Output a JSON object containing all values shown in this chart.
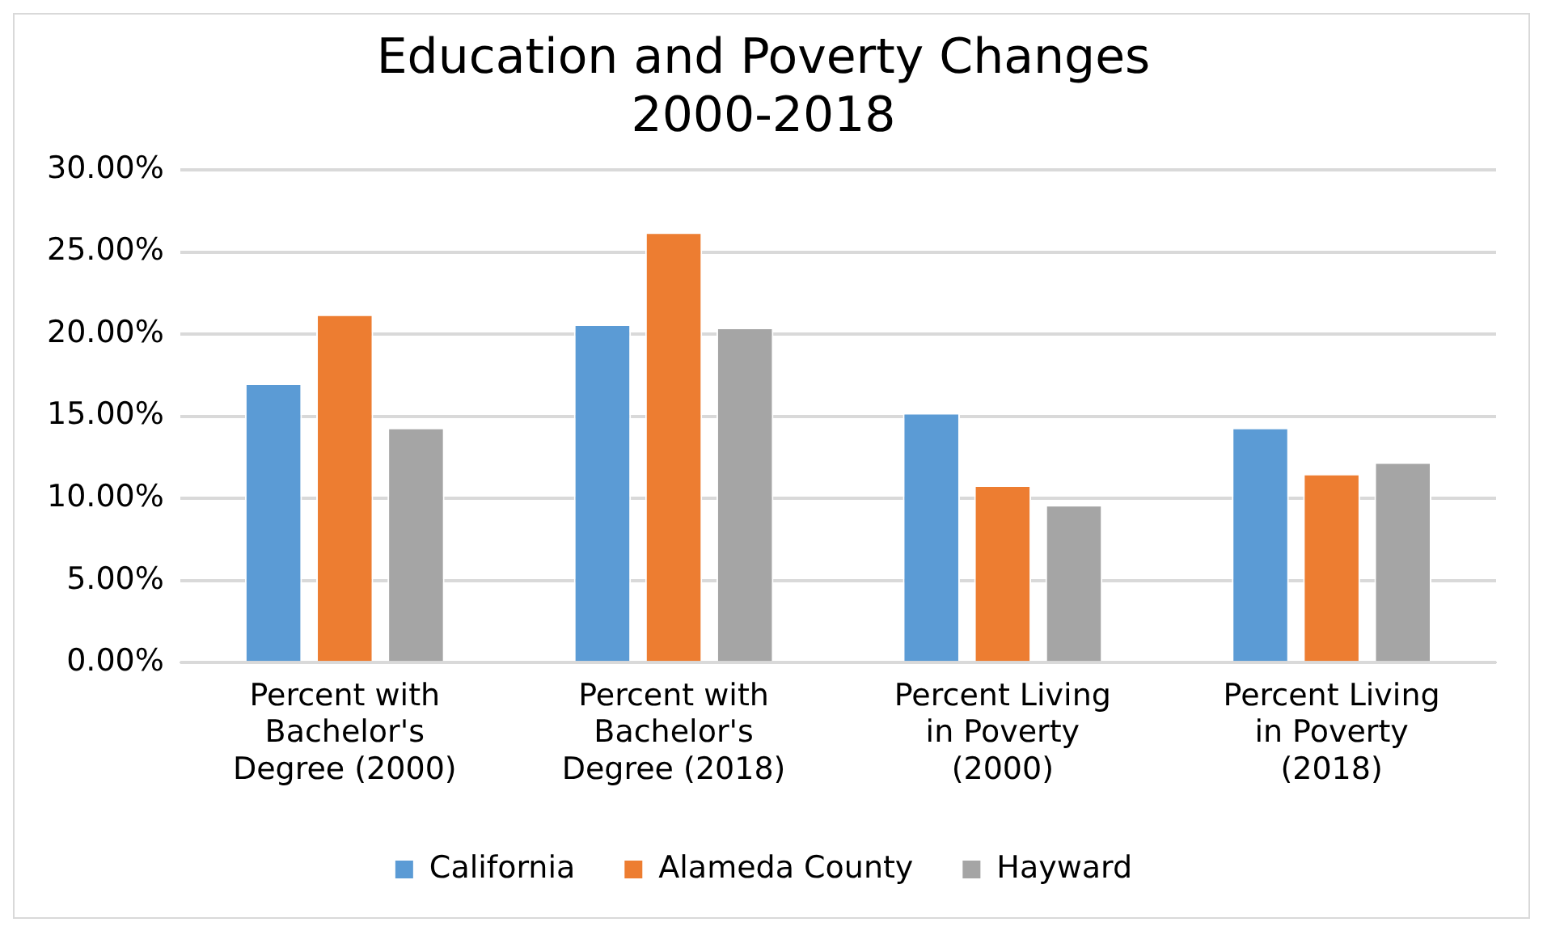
{
  "chart_data": {
    "type": "bar",
    "title": "Education and Poverty Changes 2000-2018",
    "categories": [
      "Percent with Bachelor's Degree (2000)",
      "Percent with Bachelor's Degree (2018)",
      "Percent Living in Poverty (2000)",
      "Percent Living in Poverty (2018)"
    ],
    "series": [
      {
        "name": "California",
        "color": "#5b9bd5",
        "values": [
          17.0,
          20.6,
          15.2,
          14.3
        ]
      },
      {
        "name": "Alameda County",
        "color": "#ed7d31",
        "values": [
          21.2,
          26.2,
          10.8,
          11.5
        ]
      },
      {
        "name": "Hayward",
        "color": "#a5a5a5",
        "values": [
          14.3,
          20.4,
          9.6,
          12.2
        ]
      }
    ],
    "ylim": [
      0,
      30
    ],
    "yticks": [
      {
        "value": 0,
        "label": "0.00%"
      },
      {
        "value": 5,
        "label": "5.00%"
      },
      {
        "value": 10,
        "label": "10.00%"
      },
      {
        "value": 15,
        "label": "15.00%"
      },
      {
        "value": 20,
        "label": "20.00%"
      },
      {
        "value": 25,
        "label": "25.00%"
      },
      {
        "value": 30,
        "label": "30.00%"
      }
    ],
    "grid": "y",
    "legend": "bottom"
  }
}
